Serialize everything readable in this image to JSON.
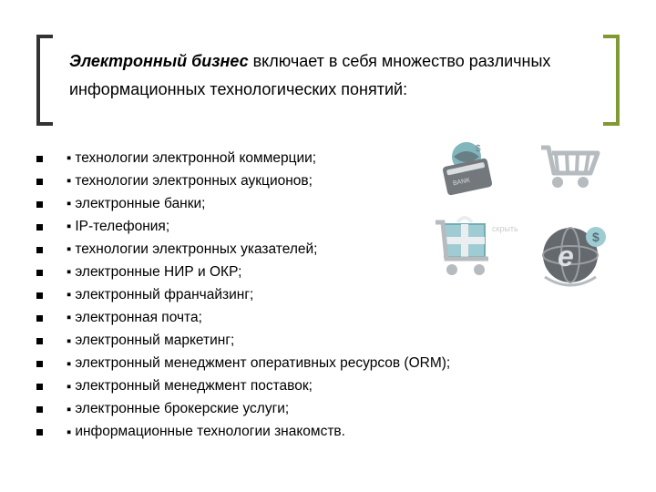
{
  "heading": {
    "bold": "Электронный бизнес",
    "rest": " включает в себя множество различных информационных технологических понятий:"
  },
  "items": [
    "технологии электронной коммерции;",
    "технологии электронных аукционов;",
    "электронные банки;",
    "IP-телефония;",
    "технологии электронных указателей;",
    "электронные НИР и ОКР;",
    "электронный франчайзинг;",
    "электронная почта;",
    "электронный маркетинг;",
    "электронный менеджмент оперативных ресурсов (ORM);",
    "электронный менеджмент поставок;",
    "электронные брокерские услуги;",
    "информационные технологии знакомств."
  ],
  "colors": {
    "bracket_left": "#333333",
    "bracket_right": "#809933",
    "text": "#000000",
    "cart": "#aab0b4",
    "accent1": "#5aa0a8",
    "accent2": "#3a5a60"
  }
}
